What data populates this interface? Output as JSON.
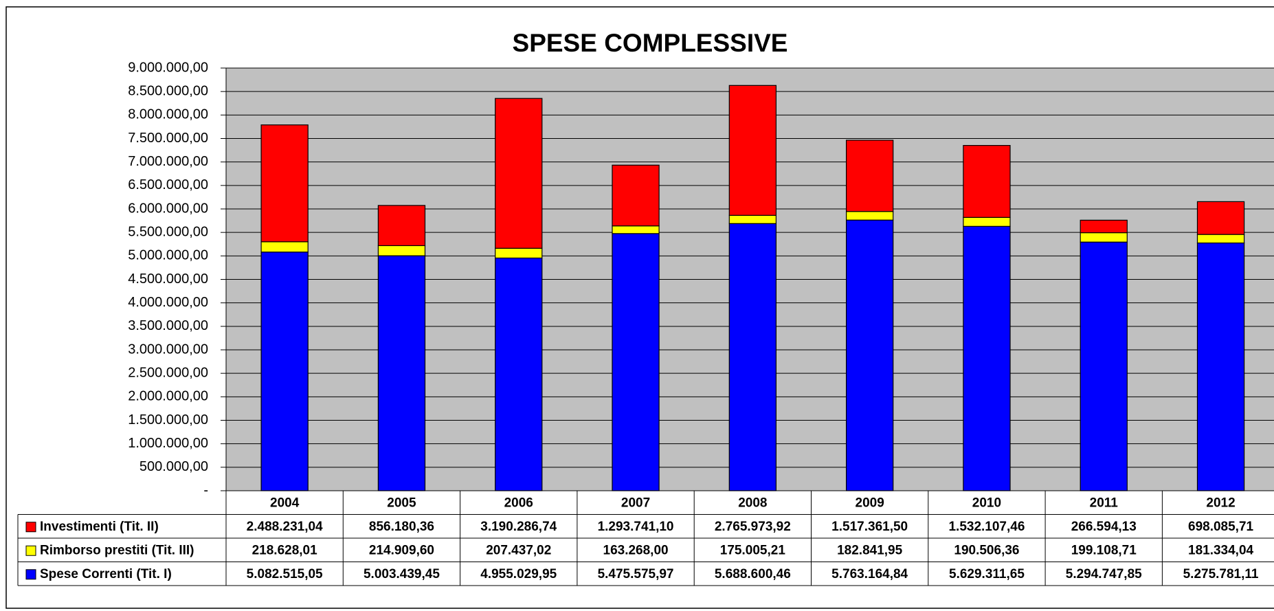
{
  "chart_data": {
    "type": "stacked-bar",
    "title": "SPESE COMPLESSIVE",
    "categories": [
      "2004",
      "2005",
      "2006",
      "2007",
      "2008",
      "2009",
      "2010",
      "2011",
      "2012"
    ],
    "series": [
      {
        "name": "Investimenti (Tit. II)",
        "color": "#ff0000",
        "values": [
          2488231.04,
          856180.36,
          3190286.74,
          1293741.1,
          2765973.92,
          1517361.5,
          1532107.46,
          266594.13,
          698085.71
        ],
        "value_labels": [
          "2.488.231,04",
          "856.180,36",
          "3.190.286,74",
          "1.293.741,10",
          "2.765.973,92",
          "1.517.361,50",
          "1.532.107,46",
          "266.594,13",
          "698.085,71"
        ]
      },
      {
        "name": "Rimborso prestiti (Tit. III)",
        "color": "#ffff00",
        "values": [
          218628.01,
          214909.6,
          207437.02,
          163268.0,
          175005.21,
          182841.95,
          190506.36,
          199108.71,
          181334.04
        ],
        "value_labels": [
          "218.628,01",
          "214.909,60",
          "207.437,02",
          "163.268,00",
          "175.005,21",
          "182.841,95",
          "190.506,36",
          "199.108,71",
          "181.334,04"
        ]
      },
      {
        "name": "Spese Correnti (Tit. I)",
        "color": "#0000ff",
        "values": [
          5082515.05,
          5003439.45,
          4955029.95,
          5475575.97,
          5688600.46,
          5763164.84,
          5629311.65,
          5294747.85,
          5275781.11
        ],
        "value_labels": [
          "5.082.515,05",
          "5.003.439,45",
          "4.955.029,95",
          "5.475.575,97",
          "5.688.600,46",
          "5.763.164,84",
          "5.629.311,65",
          "5.294.747,85",
          "5.275.781,11"
        ]
      }
    ],
    "ylim": [
      0,
      9000000
    ],
    "yticks": [
      {
        "value": 0,
        "label": "-"
      },
      {
        "value": 500000,
        "label": "500.000,00"
      },
      {
        "value": 1000000,
        "label": "1.000.000,00"
      },
      {
        "value": 1500000,
        "label": "1.500.000,00"
      },
      {
        "value": 2000000,
        "label": "2.000.000,00"
      },
      {
        "value": 2500000,
        "label": "2.500.000,00"
      },
      {
        "value": 3000000,
        "label": "3.000.000,00"
      },
      {
        "value": 3500000,
        "label": "3.500.000,00"
      },
      {
        "value": 4000000,
        "label": "4.000.000,00"
      },
      {
        "value": 4500000,
        "label": "4.500.000,00"
      },
      {
        "value": 5000000,
        "label": "5.000.000,00"
      },
      {
        "value": 5500000,
        "label": "5.500.000,00"
      },
      {
        "value": 6000000,
        "label": "6.000.000,00"
      },
      {
        "value": 6500000,
        "label": "6.500.000,00"
      },
      {
        "value": 7000000,
        "label": "7.000.000,00"
      },
      {
        "value": 7500000,
        "label": "7.500.000,00"
      },
      {
        "value": 8000000,
        "label": "8.000.000,00"
      },
      {
        "value": 8500000,
        "label": "8.500.000,00"
      },
      {
        "value": 9000000,
        "label": "9.000.000,00"
      }
    ],
    "grid": true,
    "plot_background": "#c0c0c0"
  }
}
